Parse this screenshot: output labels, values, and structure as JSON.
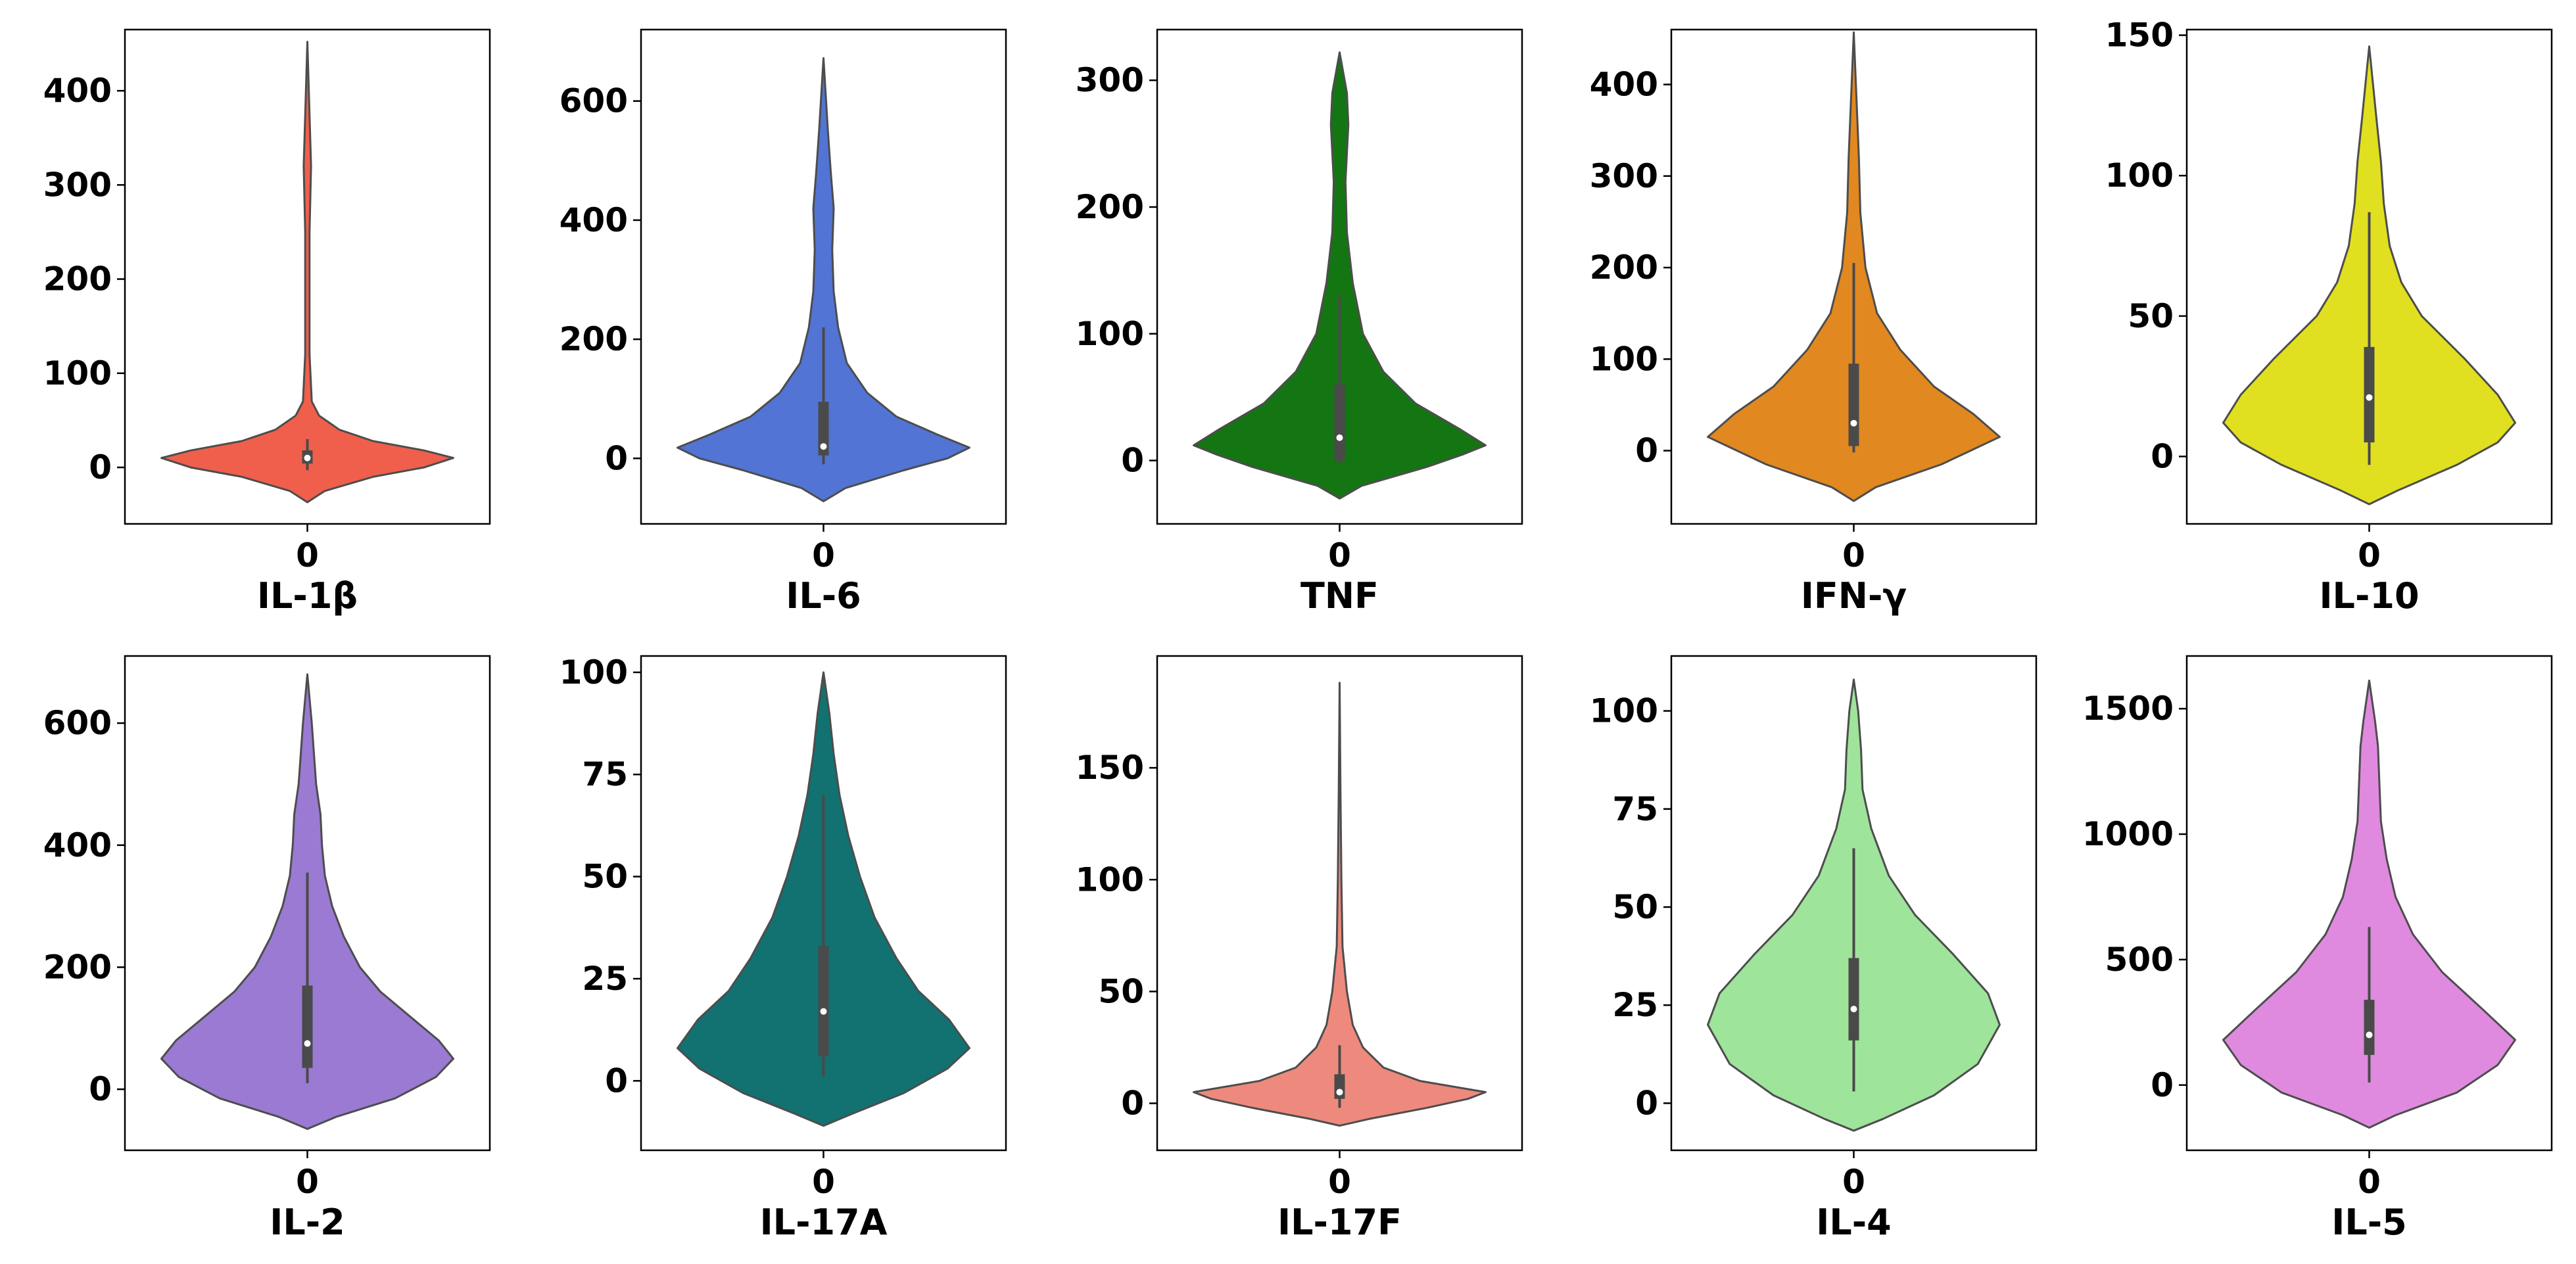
{
  "figure": {
    "colors": {
      "outline": "#4d4d4d",
      "box": "#4a4a4a",
      "median": "#ffffff",
      "frame": "#000000"
    }
  },
  "chart_data": [
    {
      "type": "violin",
      "title": "IL-1β",
      "color": "#f05f4c",
      "xcategory": "0",
      "ylim": [
        -60,
        465
      ],
      "yticks": [
        0,
        100,
        200,
        300,
        400
      ],
      "yticklabels": [
        "0",
        "100",
        "200",
        "300",
        "400"
      ],
      "profile": [
        [
          -37,
          0.0
        ],
        [
          -25,
          0.12
        ],
        [
          -10,
          0.45
        ],
        [
          0,
          0.8
        ],
        [
          10,
          1.0
        ],
        [
          18,
          0.8
        ],
        [
          28,
          0.45
        ],
        [
          40,
          0.22
        ],
        [
          55,
          0.08
        ],
        [
          70,
          0.03
        ],
        [
          120,
          0.015
        ],
        [
          250,
          0.015
        ],
        [
          320,
          0.025
        ],
        [
          400,
          0.01
        ],
        [
          452,
          0.0
        ]
      ],
      "box": {
        "q1": 4,
        "median": 10,
        "q3": 18,
        "whisker_low": -3,
        "whisker_high": 30
      }
    },
    {
      "type": "violin",
      "title": "IL-6",
      "color": "#5274d4",
      "xcategory": "0",
      "ylim": [
        -110,
        720
      ],
      "yticks": [
        0,
        200,
        400,
        600
      ],
      "yticklabels": [
        "0",
        "200",
        "400",
        "600"
      ],
      "profile": [
        [
          -72,
          0.0
        ],
        [
          -50,
          0.15
        ],
        [
          -20,
          0.55
        ],
        [
          0,
          0.85
        ],
        [
          18,
          1.0
        ],
        [
          40,
          0.78
        ],
        [
          70,
          0.5
        ],
        [
          110,
          0.3
        ],
        [
          160,
          0.16
        ],
        [
          220,
          0.1
        ],
        [
          280,
          0.07
        ],
        [
          350,
          0.06
        ],
        [
          420,
          0.07
        ],
        [
          480,
          0.05
        ],
        [
          550,
          0.03
        ],
        [
          672,
          0.0
        ]
      ],
      "box": {
        "q1": 5,
        "median": 20,
        "q3": 95,
        "whisker_low": -10,
        "whisker_high": 220
      }
    },
    {
      "type": "violin",
      "title": "TNF",
      "color": "#137612",
      "xcategory": "0",
      "ylim": [
        -50,
        340
      ],
      "yticks": [
        0,
        100,
        200,
        300
      ],
      "yticklabels": [
        "0",
        "100",
        "200",
        "300"
      ],
      "profile": [
        [
          -30,
          0.0
        ],
        [
          -20,
          0.15
        ],
        [
          -5,
          0.6
        ],
        [
          5,
          0.85
        ],
        [
          12,
          1.0
        ],
        [
          25,
          0.82
        ],
        [
          45,
          0.52
        ],
        [
          70,
          0.3
        ],
        [
          100,
          0.16
        ],
        [
          140,
          0.09
        ],
        [
          180,
          0.05
        ],
        [
          220,
          0.04
        ],
        [
          265,
          0.06
        ],
        [
          290,
          0.05
        ],
        [
          322,
          0.0
        ]
      ],
      "box": {
        "q1": 0,
        "median": 18,
        "q3": 60,
        "whisker_low": -3,
        "whisker_high": 130
      }
    },
    {
      "type": "violin",
      "title": "IFN-γ",
      "color": "#e28820",
      "xcategory": "0",
      "ylim": [
        -80,
        460
      ],
      "yticks": [
        0,
        100,
        200,
        300,
        400
      ],
      "yticklabels": [
        "0",
        "100",
        "200",
        "300",
        "400"
      ],
      "profile": [
        [
          -55,
          0.0
        ],
        [
          -40,
          0.15
        ],
        [
          -15,
          0.6
        ],
        [
          0,
          0.8
        ],
        [
          15,
          1.0
        ],
        [
          40,
          0.82
        ],
        [
          70,
          0.55
        ],
        [
          110,
          0.32
        ],
        [
          150,
          0.16
        ],
        [
          200,
          0.08
        ],
        [
          260,
          0.045
        ],
        [
          320,
          0.035
        ],
        [
          380,
          0.02
        ],
        [
          457,
          0.0
        ]
      ],
      "box": {
        "q1": 5,
        "median": 30,
        "q3": 95,
        "whisker_low": -2,
        "whisker_high": 205
      }
    },
    {
      "type": "violin",
      "title": "IL-10",
      "color": "#e0e020",
      "xcategory": "0",
      "ylim": [
        -24,
        152
      ],
      "yticks": [
        0,
        50,
        100,
        150
      ],
      "yticklabels": [
        "0",
        "50",
        "100",
        "150"
      ],
      "profile": [
        [
          -17,
          0.0
        ],
        [
          -12,
          0.2
        ],
        [
          -3,
          0.6
        ],
        [
          5,
          0.88
        ],
        [
          12,
          1.0
        ],
        [
          22,
          0.88
        ],
        [
          35,
          0.65
        ],
        [
          50,
          0.36
        ],
        [
          62,
          0.22
        ],
        [
          75,
          0.14
        ],
        [
          90,
          0.1
        ],
        [
          105,
          0.08
        ],
        [
          120,
          0.05
        ],
        [
          146,
          0.0
        ]
      ],
      "box": {
        "q1": 5,
        "median": 21,
        "q3": 39,
        "whisker_low": -3,
        "whisker_high": 87
      }
    },
    {
      "type": "violin",
      "title": "IL-2",
      "color": "#9a7ad2",
      "xcategory": "0",
      "ylim": [
        -100,
        710
      ],
      "yticks": [
        0,
        200,
        400,
        600
      ],
      "yticklabels": [
        "0",
        "200",
        "400",
        "600"
      ],
      "profile": [
        [
          -65,
          0.0
        ],
        [
          -45,
          0.2
        ],
        [
          -15,
          0.6
        ],
        [
          20,
          0.88
        ],
        [
          50,
          1.0
        ],
        [
          80,
          0.9
        ],
        [
          120,
          0.7
        ],
        [
          160,
          0.5
        ],
        [
          200,
          0.36
        ],
        [
          250,
          0.25
        ],
        [
          300,
          0.17
        ],
        [
          350,
          0.12
        ],
        [
          400,
          0.1
        ],
        [
          450,
          0.09
        ],
        [
          500,
          0.06
        ],
        [
          600,
          0.03
        ],
        [
          680,
          0.0
        ]
      ],
      "box": {
        "q1": 35,
        "median": 75,
        "q3": 170,
        "whisker_low": 10,
        "whisker_high": 355
      }
    },
    {
      "type": "violin",
      "title": "IL-17A",
      "color": "#127171",
      "xcategory": "0",
      "ylim": [
        -17,
        104
      ],
      "yticks": [
        0,
        25,
        50,
        75,
        100
      ],
      "yticklabels": [
        "0",
        "25",
        "50",
        "75",
        "100"
      ],
      "profile": [
        [
          -11,
          0.0
        ],
        [
          -8,
          0.2
        ],
        [
          -3,
          0.55
        ],
        [
          3,
          0.85
        ],
        [
          8,
          1.0
        ],
        [
          15,
          0.86
        ],
        [
          22,
          0.65
        ],
        [
          30,
          0.5
        ],
        [
          40,
          0.35
        ],
        [
          50,
          0.25
        ],
        [
          60,
          0.17
        ],
        [
          70,
          0.11
        ],
        [
          80,
          0.07
        ],
        [
          90,
          0.04
        ],
        [
          100,
          0.0
        ]
      ],
      "box": {
        "q1": 6,
        "median": 17,
        "q3": 33,
        "whisker_low": 1,
        "whisker_high": 70
      }
    },
    {
      "type": "violin",
      "title": "IL-17F",
      "color": "#ee8a7d",
      "xcategory": "0",
      "ylim": [
        -21,
        200
      ],
      "yticks": [
        0,
        50,
        100,
        150
      ],
      "yticklabels": [
        "0",
        "50",
        "100",
        "150"
      ],
      "profile": [
        [
          -10,
          0.0
        ],
        [
          -7,
          0.2
        ],
        [
          -2,
          0.6
        ],
        [
          2,
          0.88
        ],
        [
          5,
          1.0
        ],
        [
          10,
          0.55
        ],
        [
          16,
          0.3
        ],
        [
          25,
          0.16
        ],
        [
          35,
          0.09
        ],
        [
          50,
          0.05
        ],
        [
          70,
          0.02
        ],
        [
          100,
          0.012
        ],
        [
          140,
          0.006
        ],
        [
          188,
          0.0
        ]
      ],
      "box": {
        "q1": 2,
        "median": 5,
        "q3": 13,
        "whisker_low": -2,
        "whisker_high": 26
      }
    },
    {
      "type": "violin",
      "title": "IL-4",
      "color": "#9ee49b",
      "xcategory": "0",
      "ylim": [
        -12,
        114
      ],
      "yticks": [
        0,
        25,
        50,
        75,
        100
      ],
      "yticklabels": [
        "0",
        "25",
        "50",
        "75",
        "100"
      ],
      "profile": [
        [
          -7,
          0.0
        ],
        [
          -4,
          0.2
        ],
        [
          2,
          0.55
        ],
        [
          10,
          0.85
        ],
        [
          20,
          1.0
        ],
        [
          28,
          0.92
        ],
        [
          38,
          0.68
        ],
        [
          48,
          0.42
        ],
        [
          58,
          0.24
        ],
        [
          70,
          0.12
        ],
        [
          80,
          0.06
        ],
        [
          90,
          0.05
        ],
        [
          100,
          0.03
        ],
        [
          108,
          0.0
        ]
      ],
      "box": {
        "q1": 16,
        "median": 24,
        "q3": 37,
        "whisker_low": 3,
        "whisker_high": 65
      }
    },
    {
      "type": "violin",
      "title": "IL-5",
      "color": "#df8adf",
      "xcategory": "0",
      "ylim": [
        -260,
        1710
      ],
      "yticks": [
        0,
        500,
        1000,
        1500
      ],
      "yticklabels": [
        "0",
        "500",
        "1000",
        "1500"
      ],
      "profile": [
        [
          -170,
          0.0
        ],
        [
          -120,
          0.18
        ],
        [
          -30,
          0.6
        ],
        [
          80,
          0.88
        ],
        [
          180,
          1.0
        ],
        [
          300,
          0.78
        ],
        [
          450,
          0.5
        ],
        [
          600,
          0.3
        ],
        [
          750,
          0.18
        ],
        [
          900,
          0.12
        ],
        [
          1050,
          0.08
        ],
        [
          1200,
          0.07
        ],
        [
          1350,
          0.06
        ],
        [
          1450,
          0.04
        ],
        [
          1612,
          0.0
        ]
      ],
      "box": {
        "q1": 120,
        "median": 200,
        "q3": 340,
        "whisker_low": 10,
        "whisker_high": 630
      }
    }
  ]
}
